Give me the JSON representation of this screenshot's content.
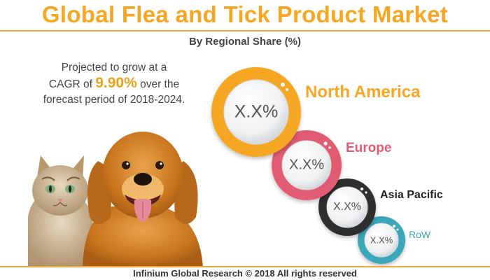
{
  "title": "Global Flea and Tick Product Market",
  "subtitle": "By Regional Share (%)",
  "cagr": {
    "line1": "Projected to grow at a",
    "line2_prefix": "CAGR of ",
    "value": "9.90%",
    "line2_suffix": " over the",
    "line3": "forecast period of 2018-2024."
  },
  "regions": [
    {
      "name": "North America",
      "value": "X.X%",
      "color": "#f5a623"
    },
    {
      "name": "Europe",
      "value": "X.X%",
      "color": "#e15b73"
    },
    {
      "name": "Asia Pacific",
      "value": "X.X%",
      "color": "#2b2b2b"
    },
    {
      "name": "RoW",
      "value": "X.X%",
      "color": "#3aa7b8"
    }
  ],
  "footer": "Infinium Global Research © 2018 All rights reserved",
  "colors": {
    "accent": "#f5a623"
  }
}
